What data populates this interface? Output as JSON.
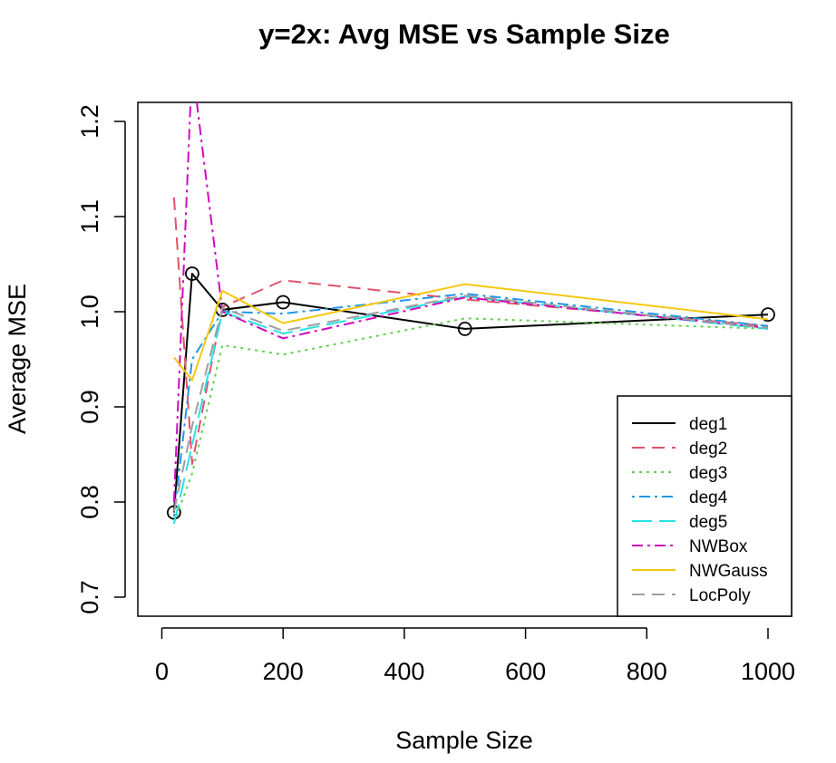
{
  "chart_data": {
    "type": "line",
    "title": "y=2x: Avg MSE vs Sample Size",
    "xlabel": "Sample Size",
    "ylabel": "Average MSE",
    "xlim": [
      0,
      1000
    ],
    "ylim": [
      0.68,
      1.22
    ],
    "x_ticks": [
      "0",
      "200",
      "400",
      "600",
      "800",
      "1000"
    ],
    "y_ticks": [
      "0.7",
      "0.8",
      "0.9",
      "1.0",
      "1.1",
      "1.2"
    ],
    "x": [
      20,
      50,
      100,
      200,
      500,
      1000
    ],
    "grid": false,
    "legend_position": "bottom-right",
    "series": [
      {
        "name": "deg1",
        "color": "#000000",
        "dash": "",
        "markers": true,
        "values": [
          0.789,
          1.04,
          1.002,
          1.01,
          0.982,
          0.997
        ]
      },
      {
        "name": "deg2",
        "color": "#DF536B",
        "dash": "14,8",
        "markers": false,
        "values": [
          1.12,
          0.84,
          1.005,
          1.033,
          1.013,
          0.985
        ]
      },
      {
        "name": "deg3",
        "color": "#61D04F",
        "dash": "3,5",
        "markers": false,
        "values": [
          0.778,
          0.83,
          0.965,
          0.955,
          0.993,
          0.982
        ]
      },
      {
        "name": "deg4",
        "color": "#2297E6",
        "dash": "3,5,12,5",
        "markers": false,
        "values": [
          0.785,
          0.95,
          1.0,
          0.998,
          1.019,
          0.985
        ]
      },
      {
        "name": "deg5",
        "color": "#28E2E5",
        "dash": "22,8",
        "markers": false,
        "values": [
          0.777,
          0.86,
          1.0,
          0.977,
          1.016,
          0.982
        ]
      },
      {
        "name": "NWBox",
        "color": "#CD0BBC",
        "dash": "12,5,3,5",
        "markers": false,
        "values": [
          0.8,
          1.26,
          1.0,
          0.972,
          1.015,
          0.983
        ]
      },
      {
        "name": "NWGauss",
        "color": "#F5C710",
        "dash": "",
        "markers": false,
        "values": [
          0.952,
          0.928,
          1.022,
          0.988,
          1.029,
          0.992
        ]
      },
      {
        "name": "LocPoly",
        "color": "#9E9E9E",
        "dash": "14,8",
        "markers": false,
        "values": [
          0.79,
          0.88,
          1.004,
          0.98,
          1.017,
          0.983
        ]
      }
    ]
  }
}
